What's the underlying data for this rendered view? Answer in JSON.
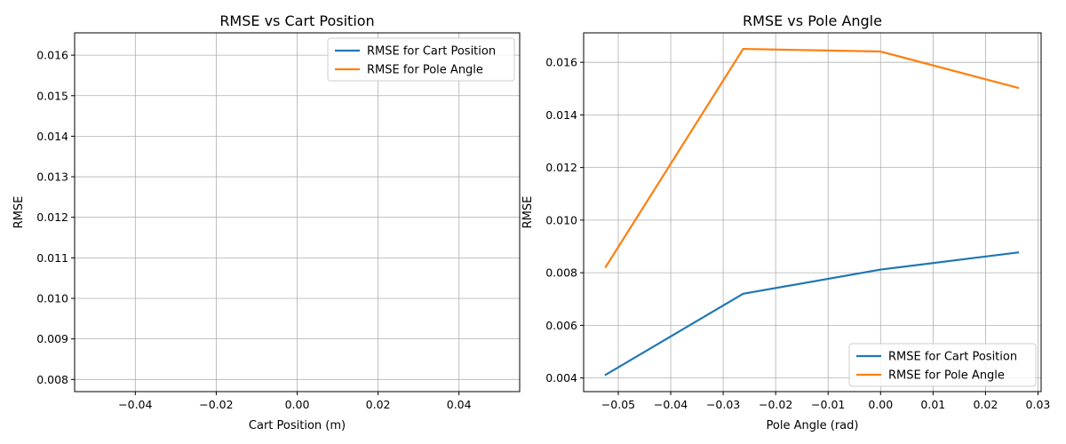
{
  "chart_data": [
    {
      "type": "line",
      "title": "RMSE vs Cart Position",
      "xlabel": "Cart Position (m)",
      "ylabel": "RMSE",
      "xlim": [
        -0.055,
        0.055
      ],
      "ylim": [
        0.0077,
        0.01655
      ],
      "xticks": [
        -0.04,
        -0.02,
        0.0,
        0.02,
        0.04
      ],
      "xtick_labels": [
        "−0.04",
        "−0.02",
        "0.00",
        "0.02",
        "0.04"
      ],
      "yticks": [
        0.008,
        0.009,
        0.01,
        0.011,
        0.012,
        0.013,
        0.014,
        0.015,
        0.016
      ],
      "ytick_labels": [
        "0.008",
        "0.009",
        "0.010",
        "0.011",
        "0.012",
        "0.013",
        "0.014",
        "0.015",
        "0.016"
      ],
      "grid": true,
      "legend_position": "top-right",
      "series": [
        {
          "name": "RMSE for Cart Position",
          "color": "#1f77b4",
          "x": [],
          "y": []
        },
        {
          "name": "RMSE for Pole Angle",
          "color": "#ff7f0e",
          "x": [],
          "y": []
        }
      ]
    },
    {
      "type": "line",
      "title": "RMSE vs Pole Angle",
      "xlabel": "Pole Angle (rad)",
      "ylabel": "RMSE",
      "xlim": [
        -0.0566,
        0.0306
      ],
      "ylim": [
        0.00348,
        0.01712
      ],
      "xticks": [
        -0.05,
        -0.04,
        -0.03,
        -0.02,
        -0.01,
        0.0,
        0.01,
        0.02,
        0.03
      ],
      "xtick_labels": [
        "−0.05",
        "−0.04",
        "−0.03",
        "−0.02",
        "−0.01",
        "0.00",
        "0.01",
        "0.02",
        "0.03"
      ],
      "yticks": [
        0.004,
        0.006,
        0.008,
        0.01,
        0.012,
        0.014,
        0.016
      ],
      "ytick_labels": [
        "0.004",
        "0.006",
        "0.008",
        "0.010",
        "0.012",
        "0.014",
        "0.016"
      ],
      "grid": true,
      "legend_position": "bottom-right",
      "series": [
        {
          "name": "RMSE for Cart Position",
          "color": "#1f77b4",
          "x": [
            -0.0524,
            -0.0262,
            0.0,
            0.0262
          ],
          "y": [
            0.00412,
            0.0072,
            0.00812,
            0.00877
          ]
        },
        {
          "name": "RMSE for Pole Angle",
          "color": "#ff7f0e",
          "x": [
            -0.0524,
            -0.0262,
            0.0,
            0.0262
          ],
          "y": [
            0.00822,
            0.01651,
            0.01641,
            0.01503
          ]
        }
      ]
    }
  ]
}
